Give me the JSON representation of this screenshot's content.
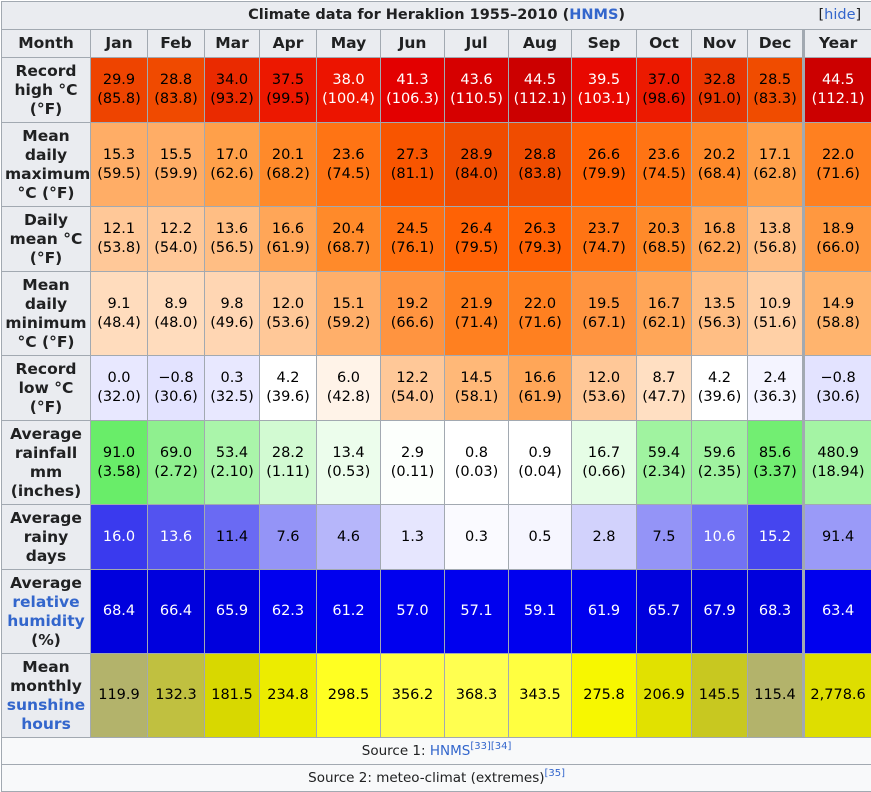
{
  "table": {
    "caption_prefix": "Climate data for Heraklion 1955–2010 (",
    "caption_link": "HNMS",
    "caption_suffix": ")",
    "hide_label": "hide",
    "month_header": "Month",
    "months": [
      "Jan",
      "Feb",
      "Mar",
      "Apr",
      "May",
      "Jun",
      "Jul",
      "Aug",
      "Sep",
      "Oct",
      "Nov",
      "Dec",
      "Year"
    ],
    "rows": [
      {
        "label": "Record high °C (°F)",
        "height": 65,
        "cells": [
          {
            "v": "29.9",
            "s": "(85.8)",
            "bg": "#ee4400",
            "fg": "#000000"
          },
          {
            "v": "28.8",
            "s": "(83.8)",
            "bg": "#f04a00",
            "fg": "#000000"
          },
          {
            "v": "34.0",
            "s": "(93.2)",
            "bg": "#ea2a00",
            "fg": "#000000"
          },
          {
            "v": "37.5",
            "s": "(99.5)",
            "bg": "#ec1800",
            "fg": "#000000"
          },
          {
            "v": "38.0",
            "s": "(100.4)",
            "bg": "#ec1400",
            "fg": "#ffffff"
          },
          {
            "v": "41.3",
            "s": "(106.3)",
            "bg": "#e30000",
            "fg": "#ffffff"
          },
          {
            "v": "43.6",
            "s": "(110.5)",
            "bg": "#d60000",
            "fg": "#ffffff"
          },
          {
            "v": "44.5",
            "s": "(112.1)",
            "bg": "#cc0000",
            "fg": "#ffffff"
          },
          {
            "v": "39.5",
            "s": "(103.1)",
            "bg": "#e80800",
            "fg": "#ffffff"
          },
          {
            "v": "37.0",
            "s": "(98.6)",
            "bg": "#ec1a00",
            "fg": "#000000"
          },
          {
            "v": "32.8",
            "s": "(91.0)",
            "bg": "#ea3600",
            "fg": "#000000"
          },
          {
            "v": "28.5",
            "s": "(83.3)",
            "bg": "#f04c00",
            "fg": "#000000"
          },
          {
            "v": "44.5",
            "s": "(112.1)",
            "bg": "#cc0000",
            "fg": "#ffffff"
          }
        ]
      },
      {
        "label": "Mean daily maximum °C (°F)",
        "height": 84,
        "cells": [
          {
            "v": "15.3",
            "s": "(59.5)",
            "bg": "#ffad66",
            "fg": "#000000"
          },
          {
            "v": "15.5",
            "s": "(59.9)",
            "bg": "#ffad66",
            "fg": "#000000"
          },
          {
            "v": "17.0",
            "s": "(62.6)",
            "bg": "#ffa04a",
            "fg": "#000000"
          },
          {
            "v": "20.1",
            "s": "(68.2)",
            "bg": "#ff8a2a",
            "fg": "#000000"
          },
          {
            "v": "23.6",
            "s": "(74.5)",
            "bg": "#ff7414",
            "fg": "#000000"
          },
          {
            "v": "27.3",
            "s": "(81.1)",
            "bg": "#f85500",
            "fg": "#000000"
          },
          {
            "v": "28.9",
            "s": "(84.0)",
            "bg": "#f04c00",
            "fg": "#000000"
          },
          {
            "v": "28.8",
            "s": "(83.8)",
            "bg": "#f04c00",
            "fg": "#000000"
          },
          {
            "v": "26.6",
            "s": "(79.9)",
            "bg": "#ff6205",
            "fg": "#000000"
          },
          {
            "v": "23.6",
            "s": "(74.5)",
            "bg": "#ff7414",
            "fg": "#000000"
          },
          {
            "v": "20.2",
            "s": "(68.4)",
            "bg": "#ff8a2a",
            "fg": "#000000"
          },
          {
            "v": "17.1",
            "s": "(62.8)",
            "bg": "#ffa04a",
            "fg": "#000000"
          },
          {
            "v": "22.0",
            "s": "(71.6)",
            "bg": "#ff8020",
            "fg": "#000000"
          }
        ]
      },
      {
        "label": "Daily mean °C (°F)",
        "height": 65,
        "cells": [
          {
            "v": "12.1",
            "s": "(53.8)",
            "bg": "#ffc898",
            "fg": "#000000"
          },
          {
            "v": "12.2",
            "s": "(54.0)",
            "bg": "#ffc898",
            "fg": "#000000"
          },
          {
            "v": "13.6",
            "s": "(56.5)",
            "bg": "#ffbe84",
            "fg": "#000000"
          },
          {
            "v": "16.6",
            "s": "(61.9)",
            "bg": "#ffa658",
            "fg": "#000000"
          },
          {
            "v": "20.4",
            "s": "(68.7)",
            "bg": "#ff8a2a",
            "fg": "#000000"
          },
          {
            "v": "24.5",
            "s": "(76.1)",
            "bg": "#ff7010",
            "fg": "#000000"
          },
          {
            "v": "26.4",
            "s": "(79.5)",
            "bg": "#ff6205",
            "fg": "#000000"
          },
          {
            "v": "26.3",
            "s": "(79.3)",
            "bg": "#ff6205",
            "fg": "#000000"
          },
          {
            "v": "23.7",
            "s": "(74.7)",
            "bg": "#ff7414",
            "fg": "#000000"
          },
          {
            "v": "20.3",
            "s": "(68.5)",
            "bg": "#ff8a2a",
            "fg": "#000000"
          },
          {
            "v": "16.8",
            "s": "(62.2)",
            "bg": "#ffa658",
            "fg": "#000000"
          },
          {
            "v": "13.8",
            "s": "(56.8)",
            "bg": "#ffbe84",
            "fg": "#000000"
          },
          {
            "v": "18.9",
            "s": "(66.0)",
            "bg": "#ff9840",
            "fg": "#000000"
          }
        ]
      },
      {
        "label": "Mean daily minimum °C (°F)",
        "height": 84,
        "cells": [
          {
            "v": "9.1",
            "s": "(48.4)",
            "bg": "#ffdcbd",
            "fg": "#000000"
          },
          {
            "v": "8.9",
            "s": "(48.0)",
            "bg": "#ffdcbd",
            "fg": "#000000"
          },
          {
            "v": "9.8",
            "s": "(49.6)",
            "bg": "#ffd6b3",
            "fg": "#000000"
          },
          {
            "v": "12.0",
            "s": "(53.6)",
            "bg": "#ffc898",
            "fg": "#000000"
          },
          {
            "v": "15.1",
            "s": "(59.2)",
            "bg": "#ffaf6a",
            "fg": "#000000"
          },
          {
            "v": "19.2",
            "s": "(66.6)",
            "bg": "#ff9440",
            "fg": "#000000"
          },
          {
            "v": "21.9",
            "s": "(71.4)",
            "bg": "#ff8020",
            "fg": "#000000"
          },
          {
            "v": "22.0",
            "s": "(71.6)",
            "bg": "#ff8020",
            "fg": "#000000"
          },
          {
            "v": "19.5",
            "s": "(67.1)",
            "bg": "#ff9440",
            "fg": "#000000"
          },
          {
            "v": "16.7",
            "s": "(62.1)",
            "bg": "#ffa658",
            "fg": "#000000"
          },
          {
            "v": "13.5",
            "s": "(56.3)",
            "bg": "#ffbe84",
            "fg": "#000000"
          },
          {
            "v": "10.9",
            "s": "(51.6)",
            "bg": "#ffd0a6",
            "fg": "#000000"
          },
          {
            "v": "14.9",
            "s": "(58.8)",
            "bg": "#ffb46e",
            "fg": "#000000"
          }
        ]
      },
      {
        "label": "Record low °C (°F)",
        "height": 65,
        "cells": [
          {
            "v": "0.0",
            "s": "(32.0)",
            "bg": "#e8e8ff",
            "fg": "#000000"
          },
          {
            "v": "−0.8",
            "s": "(30.6)",
            "bg": "#e3e3ff",
            "fg": "#000000"
          },
          {
            "v": "0.3",
            "s": "(32.5)",
            "bg": "#e8e8ff",
            "fg": "#000000"
          },
          {
            "v": "4.2",
            "s": "(39.6)",
            "bg": "#ffffff",
            "fg": "#000000"
          },
          {
            "v": "6.0",
            "s": "(42.8)",
            "bg": "#fff3e8",
            "fg": "#000000"
          },
          {
            "v": "12.2",
            "s": "(54.0)",
            "bg": "#ffc898",
            "fg": "#000000"
          },
          {
            "v": "14.5",
            "s": "(58.1)",
            "bg": "#ffb878",
            "fg": "#000000"
          },
          {
            "v": "16.6",
            "s": "(61.9)",
            "bg": "#ffa658",
            "fg": "#000000"
          },
          {
            "v": "12.0",
            "s": "(53.6)",
            "bg": "#ffc898",
            "fg": "#000000"
          },
          {
            "v": "8.7",
            "s": "(47.7)",
            "bg": "#ffdfc2",
            "fg": "#000000"
          },
          {
            "v": "4.2",
            "s": "(39.6)",
            "bg": "#ffffff",
            "fg": "#000000"
          },
          {
            "v": "2.4",
            "s": "(36.3)",
            "bg": "#f4f4ff",
            "fg": "#000000"
          },
          {
            "v": "−0.8",
            "s": "(30.6)",
            "bg": "#e3e3ff",
            "fg": "#000000"
          }
        ]
      },
      {
        "label": "Average rainfall mm (inches)",
        "height": 84,
        "cells": [
          {
            "v": "91.0",
            "s": "(3.58)",
            "bg": "#69ed69",
            "fg": "#000000"
          },
          {
            "v": "69.0",
            "s": "(2.72)",
            "bg": "#8ff08f",
            "fg": "#000000"
          },
          {
            "v": "53.4",
            "s": "(2.10)",
            "bg": "#aaf5aa",
            "fg": "#000000"
          },
          {
            "v": "28.2",
            "s": "(1.11)",
            "bg": "#d2fad2",
            "fg": "#000000"
          },
          {
            "v": "13.4",
            "s": "(0.53)",
            "bg": "#ecfdec",
            "fg": "#000000"
          },
          {
            "v": "2.9",
            "s": "(0.11)",
            "bg": "#fcfffc",
            "fg": "#000000"
          },
          {
            "v": "0.8",
            "s": "(0.03)",
            "bg": "#ffffff",
            "fg": "#000000"
          },
          {
            "v": "0.9",
            "s": "(0.04)",
            "bg": "#ffffff",
            "fg": "#000000"
          },
          {
            "v": "16.7",
            "s": "(0.66)",
            "bg": "#e6fde6",
            "fg": "#000000"
          },
          {
            "v": "59.4",
            "s": "(2.34)",
            "bg": "#a0f3a0",
            "fg": "#000000"
          },
          {
            "v": "59.6",
            "s": "(2.35)",
            "bg": "#a0f3a0",
            "fg": "#000000"
          },
          {
            "v": "85.6",
            "s": "(3.37)",
            "bg": "#72ee72",
            "fg": "#000000"
          },
          {
            "v": "480.9",
            "s": "(18.94)",
            "bg": "#a4f4a4",
            "fg": "#000000"
          }
        ]
      },
      {
        "label": "Average rainy days",
        "height": 65,
        "cells": [
          {
            "v": "16.0",
            "s": "",
            "bg": "#3a3aee",
            "fg": "#ffffff"
          },
          {
            "v": "13.6",
            "s": "",
            "bg": "#5353f0",
            "fg": "#ffffff"
          },
          {
            "v": "11.4",
            "s": "",
            "bg": "#6a6af3",
            "fg": "#000000"
          },
          {
            "v": "7.6",
            "s": "",
            "bg": "#9494f7",
            "fg": "#000000"
          },
          {
            "v": "4.6",
            "s": "",
            "bg": "#b6b6fa",
            "fg": "#000000"
          },
          {
            "v": "1.3",
            "s": "",
            "bg": "#e6e6fe",
            "fg": "#000000"
          },
          {
            "v": "0.3",
            "s": "",
            "bg": "#fafaff",
            "fg": "#000000"
          },
          {
            "v": "0.5",
            "s": "",
            "bg": "#f6f6ff",
            "fg": "#000000"
          },
          {
            "v": "2.8",
            "s": "",
            "bg": "#d2d2fc",
            "fg": "#000000"
          },
          {
            "v": "7.5",
            "s": "",
            "bg": "#9494f7",
            "fg": "#000000"
          },
          {
            "v": "10.6",
            "s": "",
            "bg": "#7272f4",
            "fg": "#ffffff"
          },
          {
            "v": "15.2",
            "s": "",
            "bg": "#4545ef",
            "fg": "#ffffff"
          },
          {
            "v": "91.4",
            "s": "",
            "bg": "#9a9af8",
            "fg": "#000000"
          }
        ]
      },
      {
        "label": "Average relative humidity (%)",
        "height": 84,
        "cells": [
          {
            "v": "68.4",
            "s": "",
            "bg": "#0000dd",
            "fg": "#ffffff"
          },
          {
            "v": "66.4",
            "s": "",
            "bg": "#0000dd",
            "fg": "#ffffff"
          },
          {
            "v": "65.9",
            "s": "",
            "bg": "#0000dd",
            "fg": "#ffffff"
          },
          {
            "v": "62.3",
            "s": "",
            "bg": "#0000ee",
            "fg": "#ffffff"
          },
          {
            "v": "61.2",
            "s": "",
            "bg": "#0000ee",
            "fg": "#ffffff"
          },
          {
            "v": "57.0",
            "s": "",
            "bg": "#0000ee",
            "fg": "#ffffff"
          },
          {
            "v": "57.1",
            "s": "",
            "bg": "#0000ee",
            "fg": "#ffffff"
          },
          {
            "v": "59.1",
            "s": "",
            "bg": "#0000ee",
            "fg": "#ffffff"
          },
          {
            "v": "61.9",
            "s": "",
            "bg": "#0000ee",
            "fg": "#ffffff"
          },
          {
            "v": "65.7",
            "s": "",
            "bg": "#0000dd",
            "fg": "#ffffff"
          },
          {
            "v": "67.9",
            "s": "",
            "bg": "#0000dd",
            "fg": "#ffffff"
          },
          {
            "v": "68.3",
            "s": "",
            "bg": "#0000dd",
            "fg": "#ffffff"
          },
          {
            "v": "63.4",
            "s": "",
            "bg": "#0000ee",
            "fg": "#ffffff"
          }
        ]
      },
      {
        "label": "Mean monthly sunshine hours",
        "height": 84,
        "cells": [
          {
            "v": "119.9",
            "s": "",
            "bg": "#b3b36b",
            "fg": "#000000"
          },
          {
            "v": "132.3",
            "s": "",
            "bg": "#c0c040",
            "fg": "#000000"
          },
          {
            "v": "181.5",
            "s": "",
            "bg": "#d8d800",
            "fg": "#000000"
          },
          {
            "v": "234.8",
            "s": "",
            "bg": "#ecec00",
            "fg": "#000000"
          },
          {
            "v": "298.5",
            "s": "",
            "bg": "#ffff22",
            "fg": "#000000"
          },
          {
            "v": "356.2",
            "s": "",
            "bg": "#ffff44",
            "fg": "#000000"
          },
          {
            "v": "368.3",
            "s": "",
            "bg": "#ffff50",
            "fg": "#000000"
          },
          {
            "v": "343.5",
            "s": "",
            "bg": "#ffff40",
            "fg": "#000000"
          },
          {
            "v": "275.8",
            "s": "",
            "bg": "#f7f700",
            "fg": "#000000"
          },
          {
            "v": "206.9",
            "s": "",
            "bg": "#e1e100",
            "fg": "#000000"
          },
          {
            "v": "145.5",
            "s": "",
            "bg": "#c8c820",
            "fg": "#000000"
          },
          {
            "v": "115.4",
            "s": "",
            "bg": "#b3b36b",
            "fg": "#000000"
          },
          {
            "v": "2,778.6",
            "s": "",
            "bg": "#dede00",
            "fg": "#000000"
          }
        ]
      }
    ],
    "row_label_parts": [
      [
        {
          "t": "Record high °C (°F)"
        }
      ],
      [
        {
          "t": "Mean daily maximum °C (°F)"
        }
      ],
      [
        {
          "t": "Daily mean °C (°F)"
        }
      ],
      [
        {
          "t": "Mean daily minimum °C (°F)"
        }
      ],
      [
        {
          "t": "Record low °C (°F)"
        }
      ],
      [
        {
          "t": "Average rainfall mm (inches)"
        }
      ],
      [
        {
          "t": "Average rainy days"
        }
      ],
      [
        {
          "t": "Average "
        },
        {
          "t": "relative humidity",
          "link": true
        },
        {
          "t": " (%)"
        }
      ],
      [
        {
          "t": "Mean monthly "
        },
        {
          "t": "sunshine hours",
          "link": true
        }
      ]
    ],
    "source1_prefix": "Source 1: ",
    "source1_link": "HNMS",
    "source1_refs": "[33][34]",
    "source2_text": "Source 2: meteo-climat (extremes)",
    "source2_refs": "[35]"
  }
}
